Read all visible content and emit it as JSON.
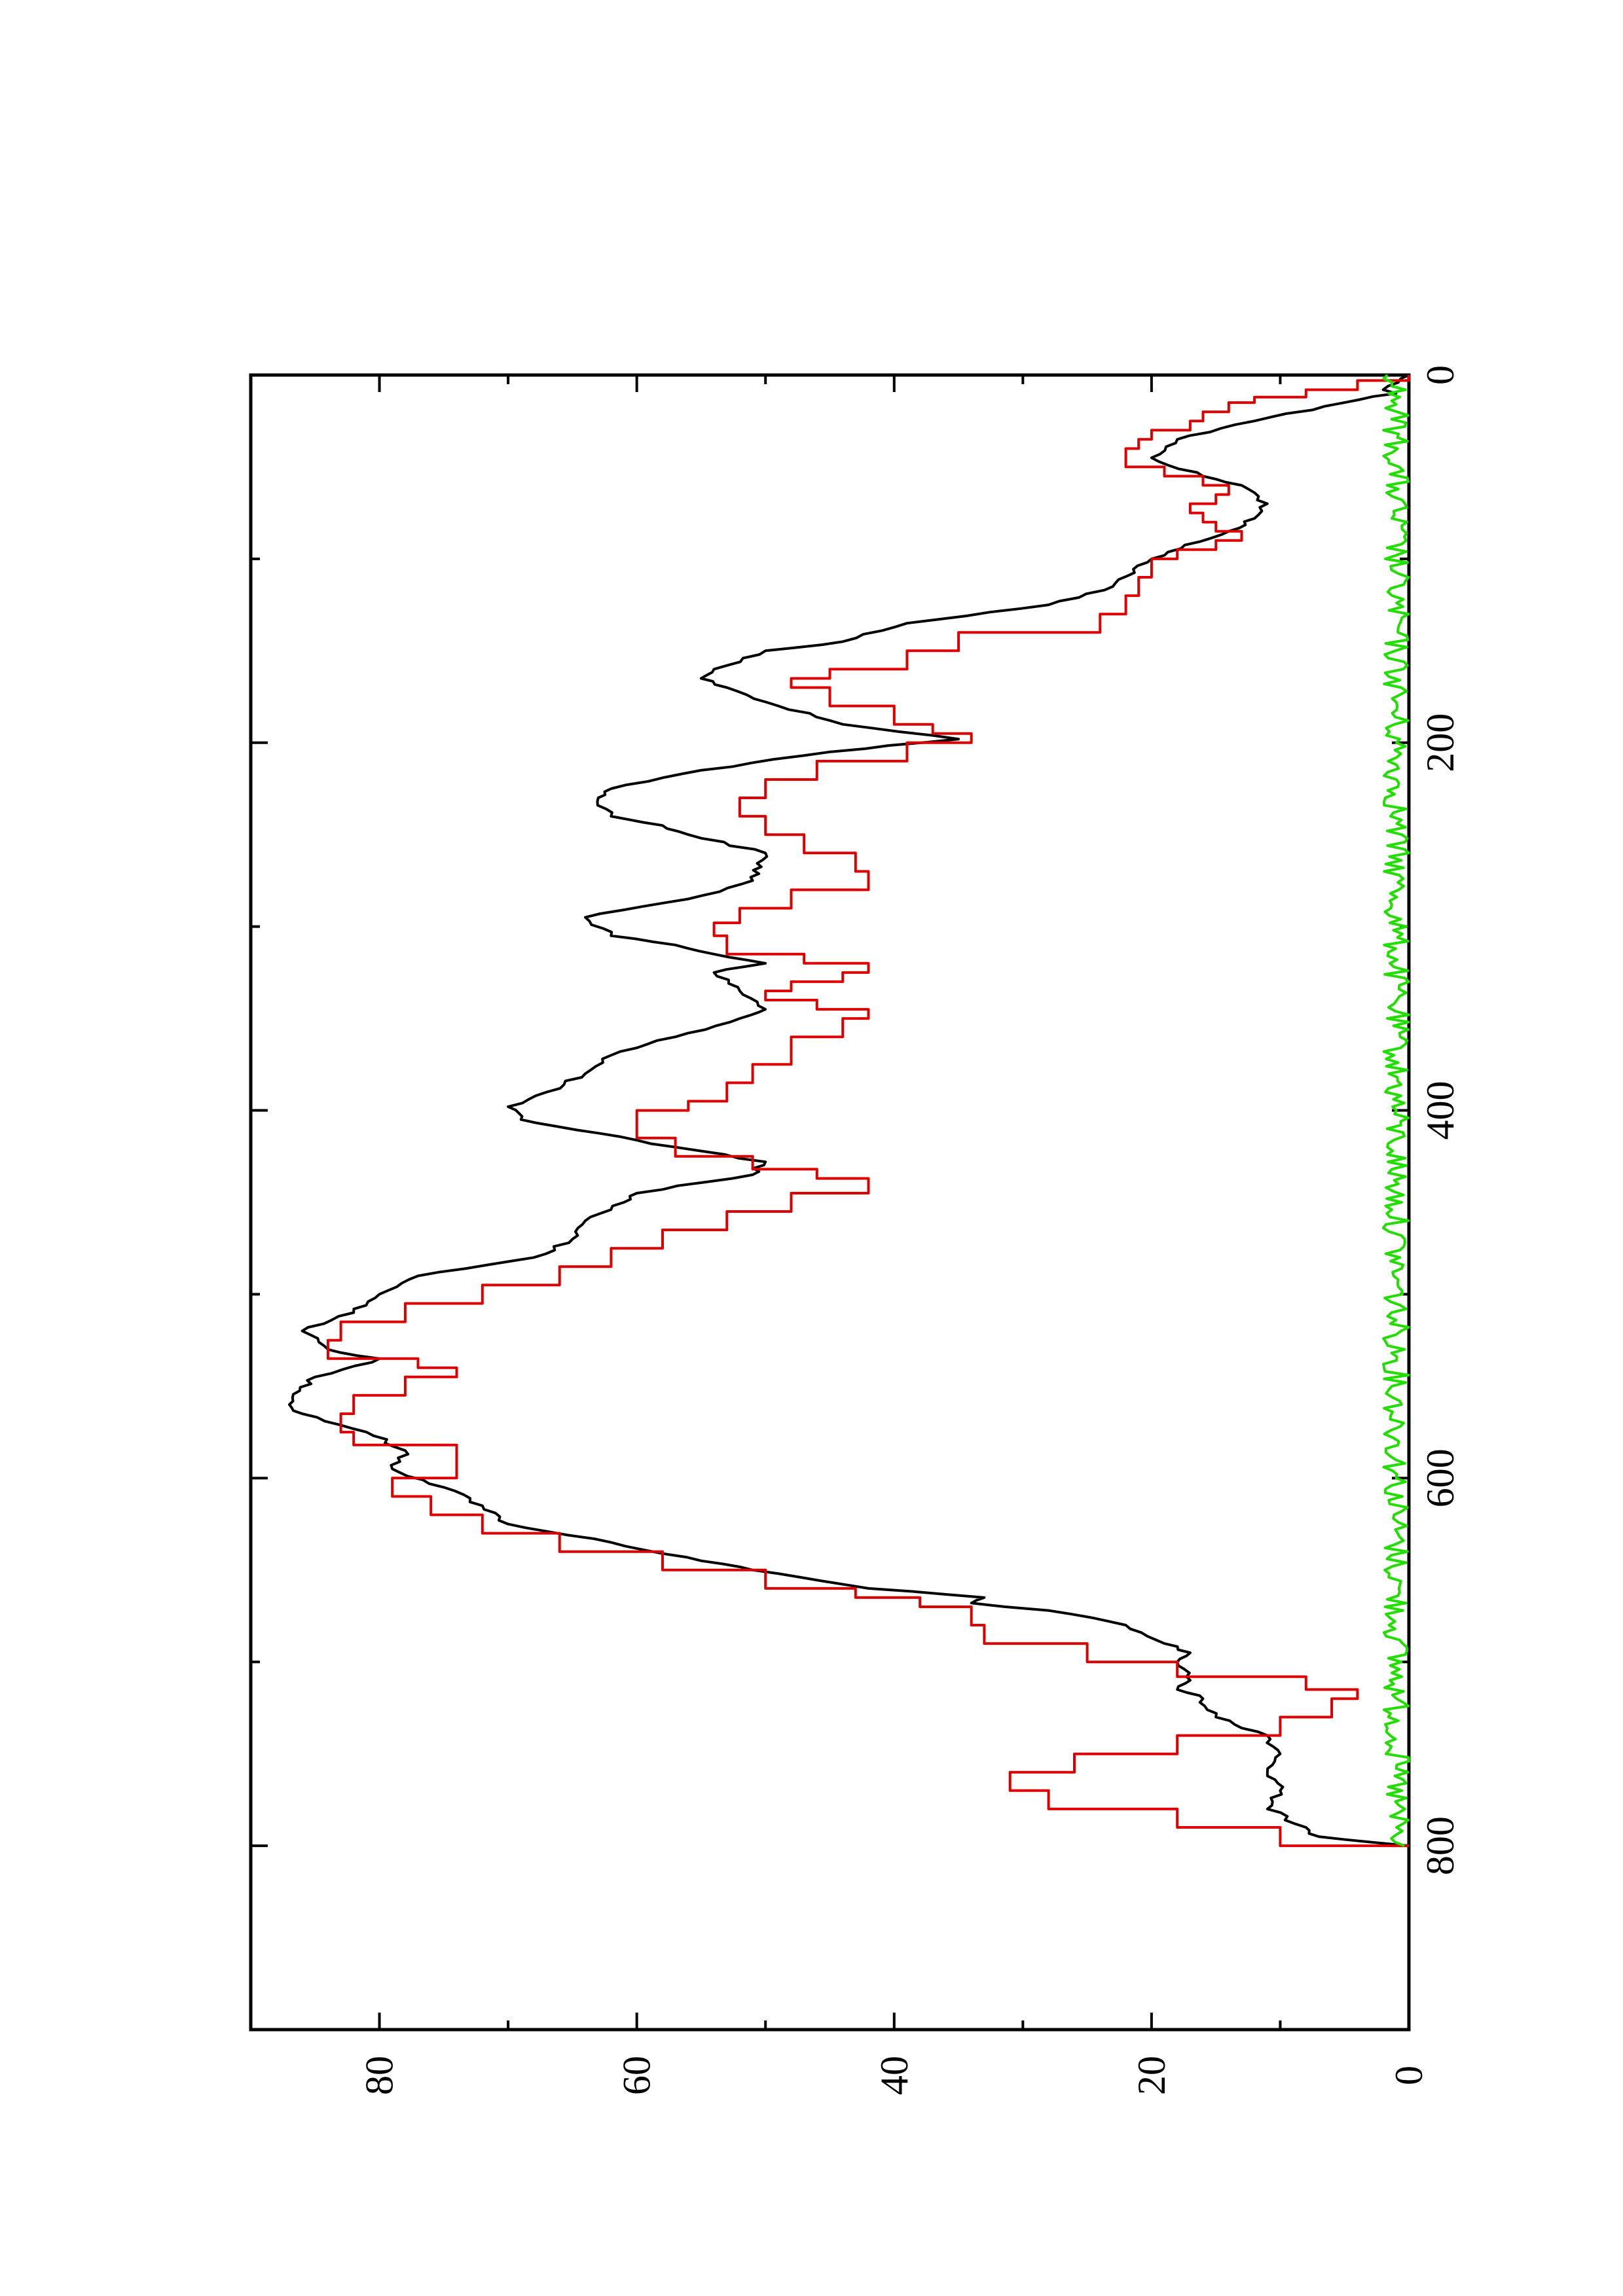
{
  "chart_data": {
    "type": "line",
    "orientation": "rotated-90-counterclockwise",
    "title": "",
    "xlabel": "",
    "ylabel": "",
    "xlim": [
      0,
      900
    ],
    "ylim": [
      0,
      90
    ],
    "x_ticks": [
      0,
      200,
      400,
      600,
      800
    ],
    "x_minor_ticks": [
      100,
      300,
      500,
      700
    ],
    "y_ticks": [
      0,
      20,
      40,
      60,
      80
    ],
    "y_minor_ticks": [
      10,
      30,
      50,
      70
    ],
    "x_tick_labels": [
      "0",
      "200",
      "400",
      "600",
      "800"
    ],
    "y_tick_labels": [
      "0",
      "20",
      "40",
      "60",
      "80"
    ],
    "grid": false,
    "legend": "none",
    "series": [
      {
        "color": "#000000",
        "style": "jagged",
        "points": [
          [
            0,
            0
          ],
          [
            8,
            2
          ],
          [
            10,
            1
          ],
          [
            15,
            5
          ],
          [
            25,
            12
          ],
          [
            35,
            18
          ],
          [
            45,
            20
          ],
          [
            55,
            16
          ],
          [
            60,
            13
          ],
          [
            70,
            11
          ],
          [
            78,
            12
          ],
          [
            85,
            14
          ],
          [
            100,
            20
          ],
          [
            115,
            23
          ],
          [
            125,
            28
          ],
          [
            135,
            39
          ],
          [
            145,
            44
          ],
          [
            150,
            50
          ],
          [
            160,
            54
          ],
          [
            165,
            55
          ],
          [
            170,
            53
          ],
          [
            180,
            49
          ],
          [
            190,
            44
          ],
          [
            198,
            35
          ],
          [
            205,
            45
          ],
          [
            215,
            55
          ],
          [
            225,
            62
          ],
          [
            230,
            63
          ],
          [
            240,
            62
          ],
          [
            245,
            58
          ],
          [
            250,
            56
          ],
          [
            260,
            50
          ],
          [
            275,
            51
          ],
          [
            285,
            56
          ],
          [
            295,
            64
          ],
          [
            305,
            62
          ],
          [
            310,
            57
          ],
          [
            315,
            54
          ],
          [
            320,
            50
          ],
          [
            325,
            54
          ],
          [
            335,
            52
          ],
          [
            345,
            50
          ],
          [
            350,
            52
          ],
          [
            360,
            57
          ],
          [
            370,
            62
          ],
          [
            380,
            64
          ],
          [
            390,
            67
          ],
          [
            398,
            70
          ],
          [
            405,
            69
          ],
          [
            420,
            57
          ],
          [
            428,
            50
          ],
          [
            435,
            51
          ],
          [
            445,
            60
          ],
          [
            450,
            61
          ],
          [
            460,
            64
          ],
          [
            470,
            65
          ],
          [
            480,
            68
          ],
          [
            490,
            77
          ],
          [
            500,
            80
          ],
          [
            510,
            82
          ],
          [
            520,
            86
          ],
          [
            530,
            84
          ],
          [
            535,
            80
          ],
          [
            545,
            85
          ],
          [
            560,
            87
          ],
          [
            565,
            86
          ],
          [
            575,
            81
          ],
          [
            585,
            78
          ],
          [
            595,
            79
          ],
          [
            605,
            75
          ],
          [
            615,
            72
          ],
          [
            625,
            70
          ],
          [
            635,
            62
          ],
          [
            645,
            55
          ],
          [
            650,
            51
          ],
          [
            660,
            42
          ],
          [
            665,
            33
          ],
          [
            668,
            34
          ],
          [
            672,
            28
          ],
          [
            680,
            22
          ],
          [
            690,
            19
          ],
          [
            695,
            17
          ],
          [
            700,
            18
          ],
          [
            710,
            17
          ],
          [
            715,
            18
          ],
          [
            720,
            16
          ],
          [
            730,
            15
          ],
          [
            740,
            11
          ],
          [
            750,
            10
          ],
          [
            760,
            11
          ],
          [
            770,
            10
          ],
          [
            780,
            11
          ],
          [
            790,
            8
          ],
          [
            795,
            7
          ],
          [
            800,
            0
          ]
        ]
      },
      {
        "color": "#dd0000",
        "style": "stepped",
        "points": [
          [
            0,
            0
          ],
          [
            3,
            4
          ],
          [
            8,
            8
          ],
          [
            12,
            12
          ],
          [
            15,
            14
          ],
          [
            20,
            16
          ],
          [
            25,
            17
          ],
          [
            30,
            20
          ],
          [
            35,
            21
          ],
          [
            40,
            22
          ],
          [
            45,
            22
          ],
          [
            50,
            19
          ],
          [
            55,
            16
          ],
          [
            60,
            14
          ],
          [
            65,
            15
          ],
          [
            70,
            17
          ],
          [
            75,
            16
          ],
          [
            80,
            15
          ],
          [
            85,
            13
          ],
          [
            90,
            15
          ],
          [
            95,
            18
          ],
          [
            100,
            20
          ],
          [
            110,
            21
          ],
          [
            120,
            22
          ],
          [
            130,
            24
          ],
          [
            140,
            35
          ],
          [
            150,
            39
          ],
          [
            160,
            45
          ],
          [
            165,
            48
          ],
          [
            170,
            45
          ],
          [
            180,
            40
          ],
          [
            190,
            37
          ],
          [
            195,
            34
          ],
          [
            200,
            39
          ],
          [
            210,
            46
          ],
          [
            220,
            50
          ],
          [
            230,
            52
          ],
          [
            240,
            50
          ],
          [
            250,
            47
          ],
          [
            260,
            43
          ],
          [
            270,
            42
          ],
          [
            280,
            48
          ],
          [
            290,
            52
          ],
          [
            298,
            54
          ],
          [
            305,
            53
          ],
          [
            315,
            47
          ],
          [
            320,
            42
          ],
          [
            325,
            44
          ],
          [
            330,
            48
          ],
          [
            335,
            50
          ],
          [
            340,
            46
          ],
          [
            345,
            42
          ],
          [
            350,
            44
          ],
          [
            360,
            48
          ],
          [
            370,
            48
          ],
          [
            375,
            51
          ],
          [
            385,
            53
          ],
          [
            395,
            56
          ],
          [
            400,
            60
          ],
          [
            408,
            60
          ],
          [
            415,
            57
          ],
          [
            425,
            51
          ],
          [
            432,
            46
          ],
          [
            437,
            42
          ],
          [
            445,
            48
          ],
          [
            455,
            53
          ],
          [
            465,
            58
          ],
          [
            475,
            62
          ],
          [
            485,
            66
          ],
          [
            495,
            72
          ],
          [
            505,
            78
          ],
          [
            515,
            83
          ],
          [
            525,
            84
          ],
          [
            535,
            77
          ],
          [
            540,
            74
          ],
          [
            545,
            78
          ],
          [
            555,
            82
          ],
          [
            565,
            83
          ],
          [
            575,
            82
          ],
          [
            582,
            74
          ],
          [
            590,
            74
          ],
          [
            600,
            79
          ],
          [
            610,
            76
          ],
          [
            620,
            72
          ],
          [
            630,
            66
          ],
          [
            640,
            58
          ],
          [
            650,
            50
          ],
          [
            660,
            43
          ],
          [
            665,
            38
          ],
          [
            670,
            34
          ],
          [
            680,
            33
          ],
          [
            690,
            25
          ],
          [
            700,
            18
          ],
          [
            708,
            8
          ],
          [
            715,
            4
          ],
          [
            720,
            6
          ],
          [
            730,
            10
          ],
          [
            740,
            18
          ],
          [
            750,
            26
          ],
          [
            760,
            31
          ],
          [
            770,
            28
          ],
          [
            780,
            18
          ],
          [
            790,
            10
          ],
          [
            800,
            0
          ]
        ]
      },
      {
        "color": "#22dd00",
        "style": "noise",
        "amplitude": 2,
        "noise_range": [
          0,
          2
        ],
        "x_range": [
          0,
          800
        ]
      }
    ]
  }
}
